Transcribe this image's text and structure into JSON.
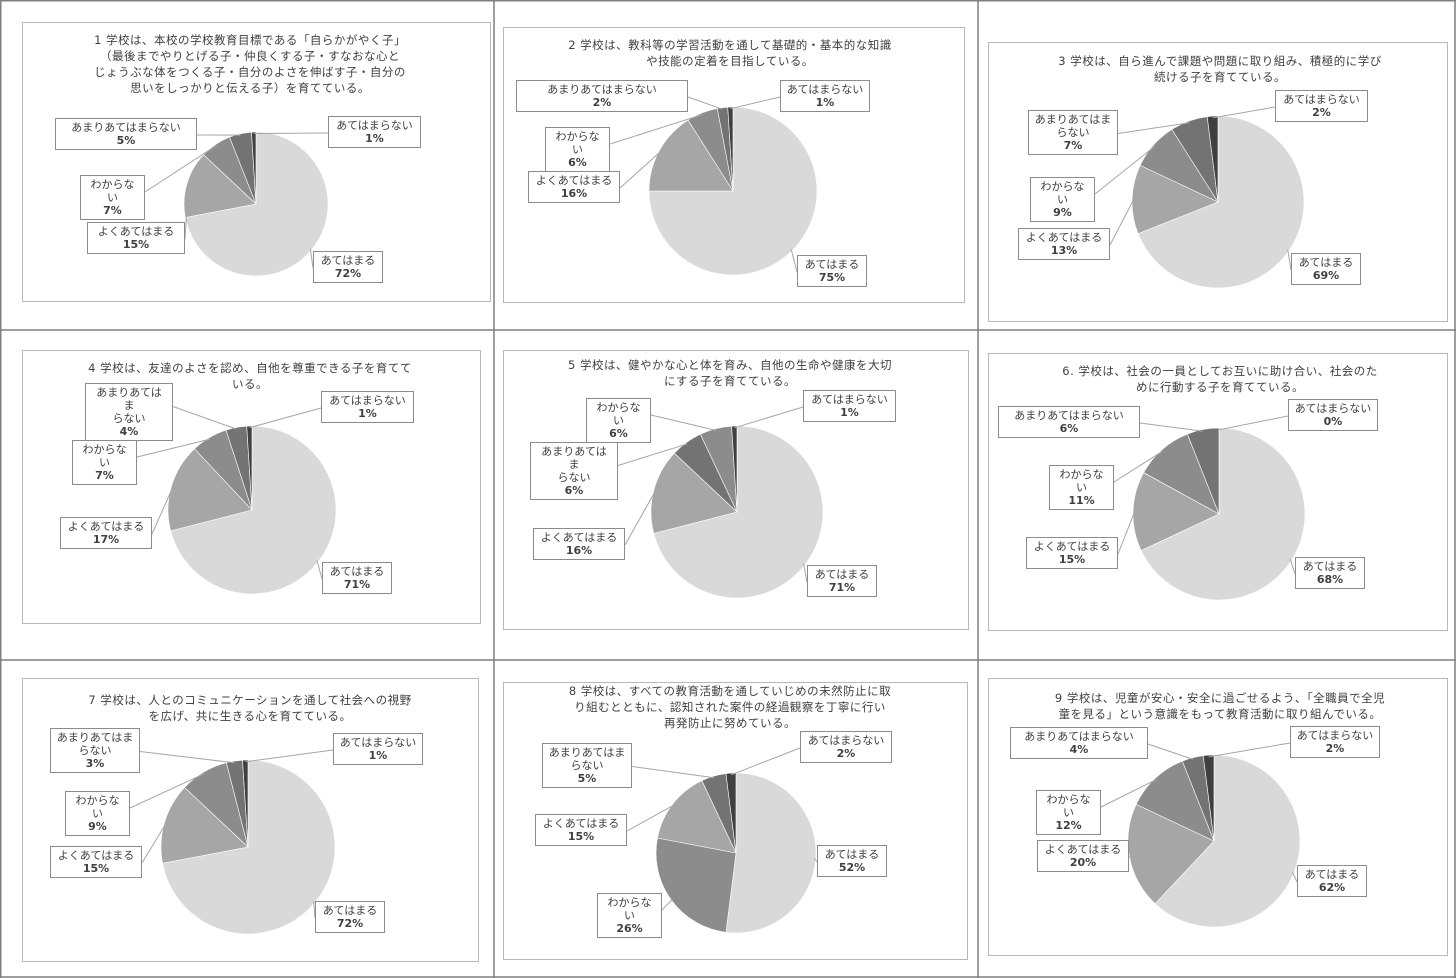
{
  "colors": {
    "atehamaru": "#d9d9d9",
    "yoku": "#a6a6a6",
    "wakaranai": "#8c8c8c",
    "amari": "#737373",
    "atehamaranai": "#404040",
    "table_border": "#7f7f7f",
    "frame_border": "#b8b8b8",
    "leader": "#a6a6a6"
  },
  "chart_data": [
    {
      "type": "pie",
      "title": "1 学校は、本校の学校教育目標である「自らかがやく子」\n（最後までやりとげる子・仲良くする子・すなおな心と\nじょうぶな体をつくる子・自分のよさを伸ばす子・自分の\n思いをしっかりと伝える子）を育てている。",
      "slices": [
        {
          "label": "あてはまる",
          "value": 72,
          "pct": "72%"
        },
        {
          "label": "よくあてはまる",
          "value": 15,
          "pct": "15%"
        },
        {
          "label": "わからない",
          "value": 7,
          "pct": "7%"
        },
        {
          "label": "あまりあてはまらない",
          "value": 5,
          "pct": "5%"
        },
        {
          "label": "あてはまらない",
          "value": 1,
          "pct": "1%"
        }
      ]
    },
    {
      "type": "pie",
      "title": "2 学校は、教科等の学習活動を通して基礎的・基本的な知識\nや技能の定着を目指している。",
      "slices": [
        {
          "label": "あてはまる",
          "value": 75,
          "pct": "75%"
        },
        {
          "label": "よくあてはまる",
          "value": 16,
          "pct": "16%"
        },
        {
          "label": "わからない",
          "value": 6,
          "pct": "6%"
        },
        {
          "label": "あまりあてはまらない",
          "value": 2,
          "pct": "2%"
        },
        {
          "label": "あてはまらない",
          "value": 1,
          "pct": "1%"
        }
      ]
    },
    {
      "type": "pie",
      "title": "3 学校は、自ら進んで課題や問題に取り組み、積極的に学び\n続ける子を育てている。",
      "slices": [
        {
          "label": "あてはまる",
          "value": 69,
          "pct": "69%"
        },
        {
          "label": "よくあてはまる",
          "value": 13,
          "pct": "13%"
        },
        {
          "label": "わからない",
          "value": 9,
          "pct": "9%"
        },
        {
          "label": "あまりあてはま\nらない",
          "value": 7,
          "pct": "7%"
        },
        {
          "label": "あてはまらない",
          "value": 2,
          "pct": "2%"
        }
      ]
    },
    {
      "type": "pie",
      "title": "4 学校は、友達のよさを認め、自他を尊重できる子を育てて\nいる。",
      "slices": [
        {
          "label": "あてはまる",
          "value": 71,
          "pct": "71%"
        },
        {
          "label": "よくあてはまる",
          "value": 17,
          "pct": "17%"
        },
        {
          "label": "わからない",
          "value": 7,
          "pct": "7%"
        },
        {
          "label": "あまりあてはま\nらない",
          "value": 4,
          "pct": "4%"
        },
        {
          "label": "あてはまらない",
          "value": 1,
          "pct": "1%"
        }
      ]
    },
    {
      "type": "pie",
      "title": "5 学校は、健やかな心と体を育み、自他の生命や健康を大切\nにする子を育てている。",
      "slices": [
        {
          "label": "あてはまる",
          "value": 71,
          "pct": "71%"
        },
        {
          "label": "よくあてはまる",
          "value": 16,
          "pct": "16%"
        },
        {
          "label": "あまりあてはま\nらない",
          "value": 6,
          "pct": "6%"
        },
        {
          "label": "わからない",
          "value": 6,
          "pct": "6%"
        },
        {
          "label": "あてはまらない",
          "value": 1,
          "pct": "1%"
        }
      ]
    },
    {
      "type": "pie",
      "title": "6. 学校は、社会の一員としてお互いに助け合い、社会のた\nめに行動する子を育てている。",
      "slices": [
        {
          "label": "あてはまる",
          "value": 68,
          "pct": "68%"
        },
        {
          "label": "よくあてはまる",
          "value": 15,
          "pct": "15%"
        },
        {
          "label": "わからない",
          "value": 11,
          "pct": "11%"
        },
        {
          "label": "あまりあてはまらない",
          "value": 6,
          "pct": "6%"
        },
        {
          "label": "あてはまらない",
          "value": 0,
          "pct": "0%"
        }
      ]
    },
    {
      "type": "pie",
      "title": "7 学校は、人とのコミュニケーションを通して社会への視野\nを広げ、共に生きる心を育てている。",
      "slices": [
        {
          "label": "あてはまる",
          "value": 72,
          "pct": "72%"
        },
        {
          "label": "よくあてはまる",
          "value": 15,
          "pct": "15%"
        },
        {
          "label": "わからない",
          "value": 9,
          "pct": "9%"
        },
        {
          "label": "あまりあてはま\nらない",
          "value": 3,
          "pct": "3%"
        },
        {
          "label": "あてはまらない",
          "value": 1,
          "pct": "1%"
        }
      ]
    },
    {
      "type": "pie",
      "title": "8 学校は、すべての教育活動を通していじめの未然防止に取\nり組むとともに、認知された案件の経過観察を丁寧に行い\n再発防止に努めている。",
      "slices": [
        {
          "label": "あてはまる",
          "value": 52,
          "pct": "52%"
        },
        {
          "label": "わからない",
          "value": 26,
          "pct": "26%"
        },
        {
          "label": "よくあてはまる",
          "value": 15,
          "pct": "15%"
        },
        {
          "label": "あまりあてはま\nらない",
          "value": 5,
          "pct": "5%"
        },
        {
          "label": "あてはまらない",
          "value": 2,
          "pct": "2%"
        }
      ]
    },
    {
      "type": "pie",
      "title": "9 学校は、児童が安心・安全に過ごせるよう、「全職員で全児\n童を見る」という意識をもって教育活動に取り組んでいる。",
      "slices": [
        {
          "label": "あてはまる",
          "value": 62,
          "pct": "62%"
        },
        {
          "label": "よくあてはまる",
          "value": 20,
          "pct": "20%"
        },
        {
          "label": "わからない",
          "value": 12,
          "pct": "12%"
        },
        {
          "label": "あまりあてはまらない",
          "value": 4,
          "pct": "4%"
        },
        {
          "label": "あてはまらない",
          "value": 2,
          "pct": "2%"
        }
      ]
    }
  ]
}
